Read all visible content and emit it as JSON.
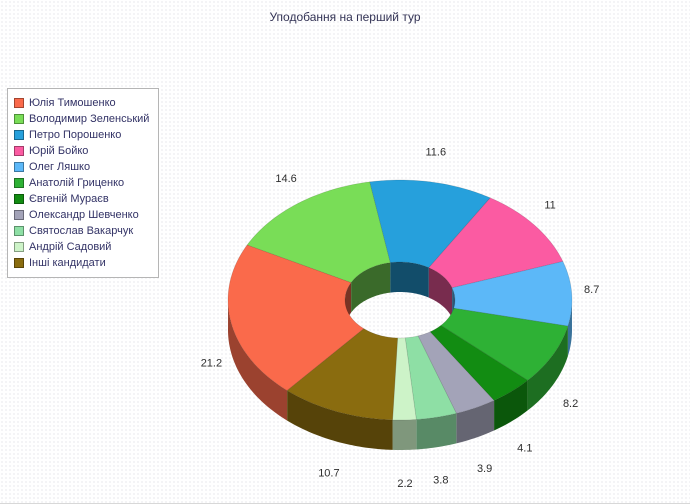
{
  "title": "Уподобання на перший тур",
  "chart_data": {
    "type": "pie",
    "title": "Уподобання на перший тур",
    "donut": true,
    "unit": "%",
    "legend_position": "left",
    "direction": "clockwise",
    "start_angle_deg": 229,
    "slices": [
      {
        "label": "Юлія Тимошенко",
        "value": 21.2,
        "color": "#fa6a4b"
      },
      {
        "label": "Володимир Зеленський",
        "value": 14.6,
        "color": "#79dd57"
      },
      {
        "label": "Петро Порошенко",
        "value": 11.6,
        "color": "#26a0dc"
      },
      {
        "label": "Юрій Бойко",
        "value": 11,
        "color": "#fb5ba2"
      },
      {
        "label": "Олег Ляшко",
        "value": 8.7,
        "color": "#5cb8f8"
      },
      {
        "label": "Анатолій Гриценко",
        "value": 8.2,
        "color": "#2eb135"
      },
      {
        "label": "Євгеній Мураєв",
        "value": 4.1,
        "color": "#128c12"
      },
      {
        "label": "Олександр Шевченко",
        "value": 3.9,
        "color": "#a3a3b8"
      },
      {
        "label": "Святослав Вакарчук",
        "value": 3.8,
        "color": "#8edfa5"
      },
      {
        "label": "Андрій Садовий",
        "value": 2.2,
        "color": "#cdf3c8"
      },
      {
        "label": "Інші кандидати",
        "value": 10.7,
        "color": "#8a6c0f"
      }
    ]
  }
}
